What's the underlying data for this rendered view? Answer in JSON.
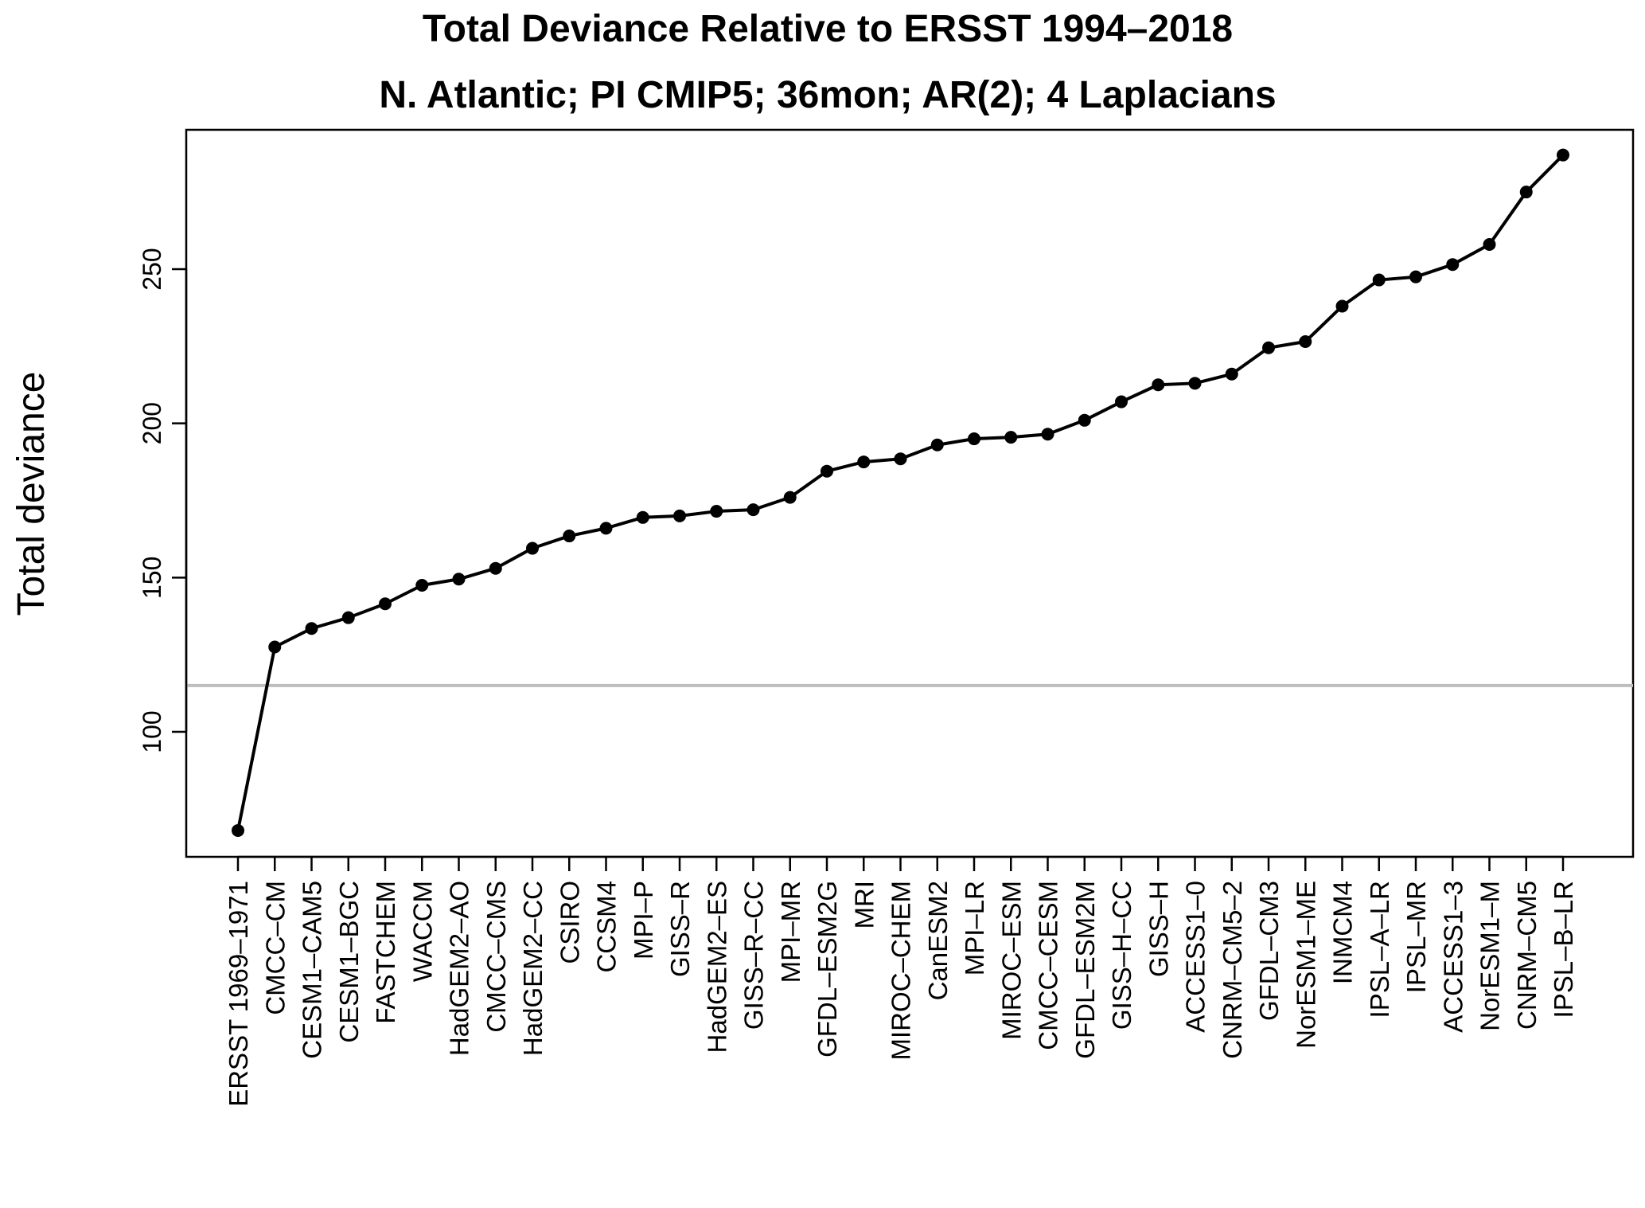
{
  "chart_data": {
    "type": "line",
    "title": "Total Deviance Relative to ERSST 1994–2018",
    "subtitle": "N. Atlantic; PI CMIP5; 36mon; AR(2); 4 Laplacians",
    "xlabel": "",
    "ylabel": "Total deviance",
    "ylim": [
      64,
      291
    ],
    "yticks": [
      100,
      150,
      200,
      250
    ],
    "grid": false,
    "categories": [
      "ERSST 1969–1971",
      "CMCC–CM",
      "CESM1–CAM5",
      "CESM1–BGC",
      "FASTCHEM",
      "WACCM",
      "HadGEM2–AO",
      "CMCC–CMS",
      "HadGEM2–CC",
      "CSIRO",
      "CCSM4",
      "MPI–P",
      "GISS–R",
      "HadGEM2–ES",
      "GISS–R–CC",
      "MPI–MR",
      "GFDL–ESM2G",
      "MRI",
      "MIROC–CHEM",
      "CanESM2",
      "MPI–LR",
      "MIROC–ESM",
      "CMCC–CESM",
      "GFDL–ESM2M",
      "GISS–H–CC",
      "GISS–H",
      "ACCESS1–0",
      "CNRM–CM5–2",
      "GFDL–CM3",
      "NorESM1–ME",
      "INMCM4",
      "IPSL–A–LR",
      "IPSL–MR",
      "ACCESS1–3",
      "NorESM1–M",
      "CNRM–CM5",
      "IPSL–B–LR"
    ],
    "series": [
      {
        "values": [
          68,
          127.5,
          133.5,
          137,
          141.5,
          147.5,
          149.5,
          153,
          159.5,
          163.5,
          166,
          169.5,
          170,
          171.5,
          172,
          176,
          184.5,
          187.5,
          188.5,
          193,
          195,
          195.5,
          196.5,
          201,
          207,
          212.5,
          213,
          216,
          224.5,
          226.5,
          238,
          246.5,
          247.5,
          251.5,
          258,
          275,
          287
        ]
      }
    ],
    "reference_line": {
      "value": 115,
      "color": "#bebebe"
    },
    "line_color": "#000000",
    "marker_color": "#000000"
  }
}
